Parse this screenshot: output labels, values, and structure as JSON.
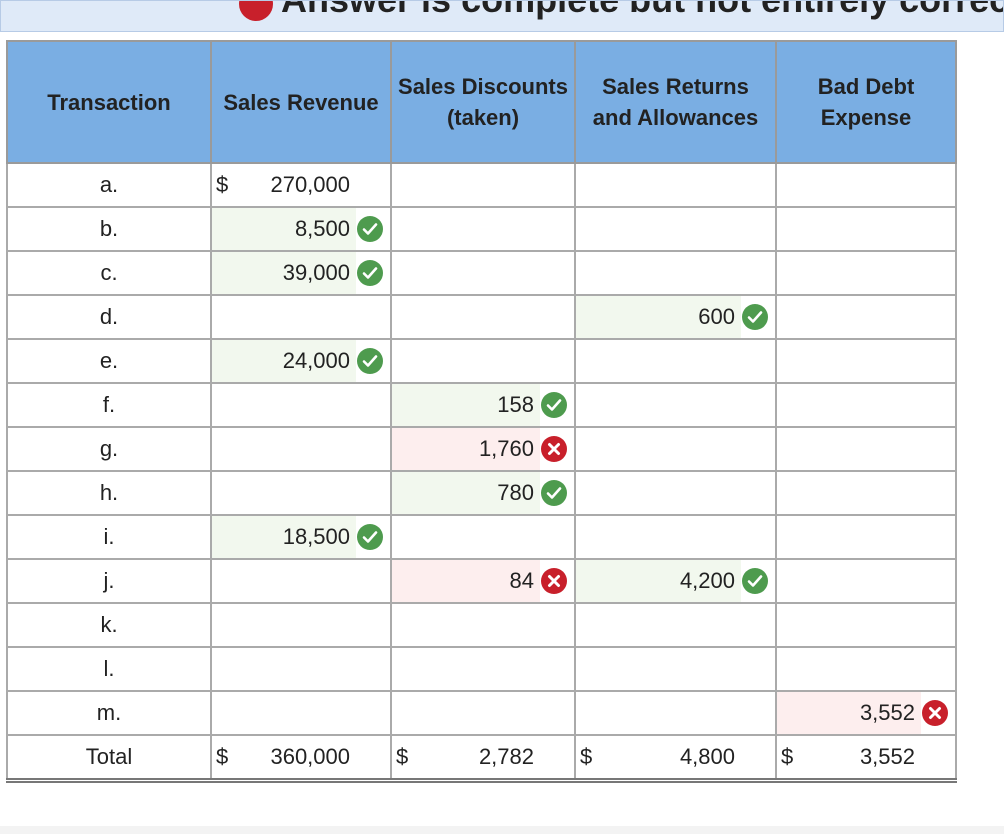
{
  "banner": "Answer is complete but not entirely correct.",
  "table": {
    "headers": [
      "Transaction",
      "Sales Revenue",
      "Sales Discounts (taken)",
      "Sales Returns and Allowances",
      "Bad Debt Expense"
    ],
    "rows": [
      {
        "label": "a.",
        "cells": [
          {
            "prefix": "$",
            "value": "270,000"
          },
          null,
          null,
          null
        ]
      },
      {
        "label": "b.",
        "cells": [
          {
            "value": "8,500",
            "status": "correct"
          },
          null,
          null,
          null
        ]
      },
      {
        "label": "c.",
        "cells": [
          {
            "value": "39,000",
            "status": "correct"
          },
          null,
          null,
          null
        ]
      },
      {
        "label": "d.",
        "cells": [
          null,
          null,
          {
            "value": "600",
            "status": "correct"
          },
          null
        ]
      },
      {
        "label": "e.",
        "cells": [
          {
            "value": "24,000",
            "status": "correct"
          },
          null,
          null,
          null
        ]
      },
      {
        "label": "f.",
        "cells": [
          null,
          {
            "value": "158",
            "status": "correct"
          },
          null,
          null
        ]
      },
      {
        "label": "g.",
        "cells": [
          null,
          {
            "value": "1,760",
            "status": "incorrect"
          },
          null,
          null
        ]
      },
      {
        "label": "h.",
        "cells": [
          null,
          {
            "value": "780",
            "status": "correct"
          },
          null,
          null
        ]
      },
      {
        "label": "i.",
        "cells": [
          {
            "value": "18,500",
            "status": "correct"
          },
          null,
          null,
          null
        ]
      },
      {
        "label": "j.",
        "cells": [
          null,
          {
            "value": "84",
            "status": "incorrect"
          },
          {
            "value": "4,200",
            "status": "correct"
          },
          null
        ]
      },
      {
        "label": "k.",
        "cells": [
          null,
          null,
          null,
          null
        ]
      },
      {
        "label": "l.",
        "cells": [
          null,
          null,
          null,
          null
        ]
      },
      {
        "label": "m.",
        "cells": [
          null,
          null,
          null,
          {
            "value": "3,552",
            "status": "incorrect"
          }
        ]
      },
      {
        "label": "Total",
        "cells": [
          {
            "prefix": "$",
            "value": "360,000"
          },
          {
            "prefix": "$",
            "value": "2,782"
          },
          {
            "prefix": "$",
            "value": "4,800"
          },
          {
            "prefix": "$",
            "value": "3,552"
          }
        ]
      }
    ]
  }
}
